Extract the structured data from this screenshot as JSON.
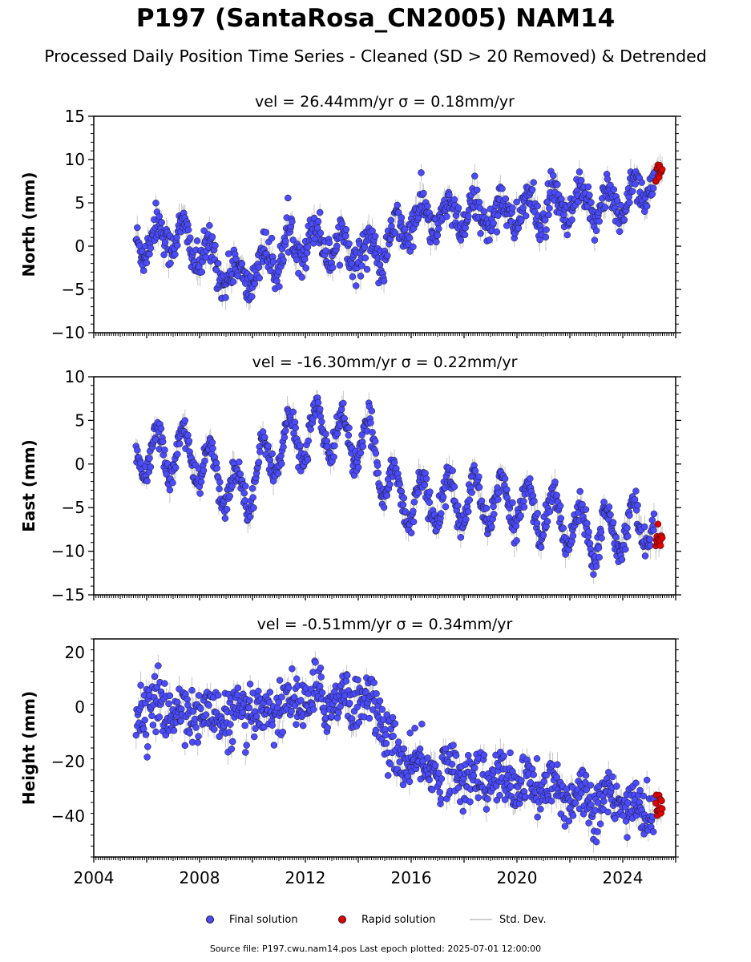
{
  "title": "P197 (SantaRosa_CN2005) NAM14",
  "subtitle": "Processed Daily Position Time Series - Cleaned (SD > 20 Removed) & Detrended",
  "legend": {
    "final": "Final solution",
    "rapid": "Rapid solution",
    "std": "Std. Dev."
  },
  "footer": {
    "source_label": "Source file: P197.cwu.nam14.pos",
    "last_epoch_label": "Last epoch plotted: 2025-07-01 12:00:00"
  },
  "colors": {
    "final": "#4a4aff",
    "rapid": "#e00000",
    "std_dev": "#b0b0b0",
    "marker_edge": "#1a1a1a"
  },
  "chart_data": [
    {
      "type": "scatter",
      "panel": "north",
      "subtitle": "vel = 26.44mm/yr   σ = 0.18mm/yr",
      "ylabel": "North (mm)",
      "xlim": [
        2004.0,
        2026.0
      ],
      "ylim": [
        -10,
        15
      ],
      "yticks": [
        -10,
        -5,
        0,
        5,
        10,
        15
      ],
      "xticks": [
        2004,
        2008,
        2012,
        2016,
        2020,
        2024
      ],
      "show_xtick_labels": false,
      "series": [
        {
          "name": "Final solution",
          "x_range": [
            2005.6,
            2025.2
          ],
          "approx_trend": [
            [
              2005.6,
              0.5
            ],
            [
              2007.0,
              1.5
            ],
            [
              2009.5,
              -4.0
            ],
            [
              2012.0,
              1.0
            ],
            [
              2014.8,
              -1.0
            ],
            [
              2016.0,
              3.0
            ],
            [
              2020.0,
              4.0
            ],
            [
              2024.0,
              5.0
            ],
            [
              2025.2,
              8.0
            ]
          ],
          "seasonal_amplitude": 1.8,
          "noise": 1.1
        },
        {
          "name": "Rapid solution",
          "x_range": [
            2025.25,
            2025.5
          ],
          "approx_value": 8.3,
          "noise": 0.6
        }
      ]
    },
    {
      "type": "scatter",
      "panel": "east",
      "subtitle": "vel = -16.30mm/yr   σ = 0.22mm/yr",
      "ylabel": "East (mm)",
      "xlim": [
        2004.0,
        2026.0
      ],
      "ylim": [
        -15,
        10
      ],
      "yticks": [
        -15,
        -10,
        -5,
        0,
        5,
        10
      ],
      "xticks": [
        2004,
        2008,
        2012,
        2016,
        2020,
        2024
      ],
      "show_xtick_labels": false,
      "series": [
        {
          "name": "Final solution",
          "x_range": [
            2005.6,
            2025.2
          ],
          "approx_trend": [
            [
              2005.6,
              1.0
            ],
            [
              2007.5,
              1.5
            ],
            [
              2009.5,
              -3.5
            ],
            [
              2011.0,
              2.0
            ],
            [
              2012.5,
              4.0
            ],
            [
              2014.5,
              2.0
            ],
            [
              2015.5,
              -4.0
            ],
            [
              2020.0,
              -4.5
            ],
            [
              2023.0,
              -8.0
            ],
            [
              2025.2,
              -6.5
            ]
          ],
          "seasonal_amplitude": 2.8,
          "noise": 0.8
        },
        {
          "name": "Rapid solution",
          "x_range": [
            2025.25,
            2025.5
          ],
          "approx_value": -8.6,
          "noise": 0.5
        }
      ]
    },
    {
      "type": "scatter",
      "panel": "height",
      "subtitle": "vel = -0.51mm/yr   σ = 0.34mm/yr",
      "ylabel": "Height (mm)",
      "xlim": [
        2004.0,
        2026.0
      ],
      "ylim": [
        -55,
        25
      ],
      "yticks": [
        -40,
        -20,
        0,
        20
      ],
      "xticks": [
        2004,
        2008,
        2012,
        2016,
        2020,
        2024
      ],
      "xtick_labels": [
        "2004",
        "2008",
        "2012",
        "2016",
        "2020",
        "2024"
      ],
      "series": [
        {
          "name": "Final solution",
          "x_range": [
            2005.6,
            2025.2
          ],
          "approx_trend": [
            [
              2005.6,
              0.0
            ],
            [
              2009.5,
              -4.0
            ],
            [
              2012.0,
              3.0
            ],
            [
              2014.5,
              3.0
            ],
            [
              2015.5,
              -20.0
            ],
            [
              2018.0,
              -25.0
            ],
            [
              2021.0,
              -30.0
            ],
            [
              2025.2,
              -38.0
            ]
          ],
          "seasonal_amplitude": 3.0,
          "noise": 5.0
        },
        {
          "name": "Rapid solution",
          "x_range": [
            2025.25,
            2025.5
          ],
          "approx_value": -37.0,
          "noise": 2.5
        }
      ]
    }
  ]
}
